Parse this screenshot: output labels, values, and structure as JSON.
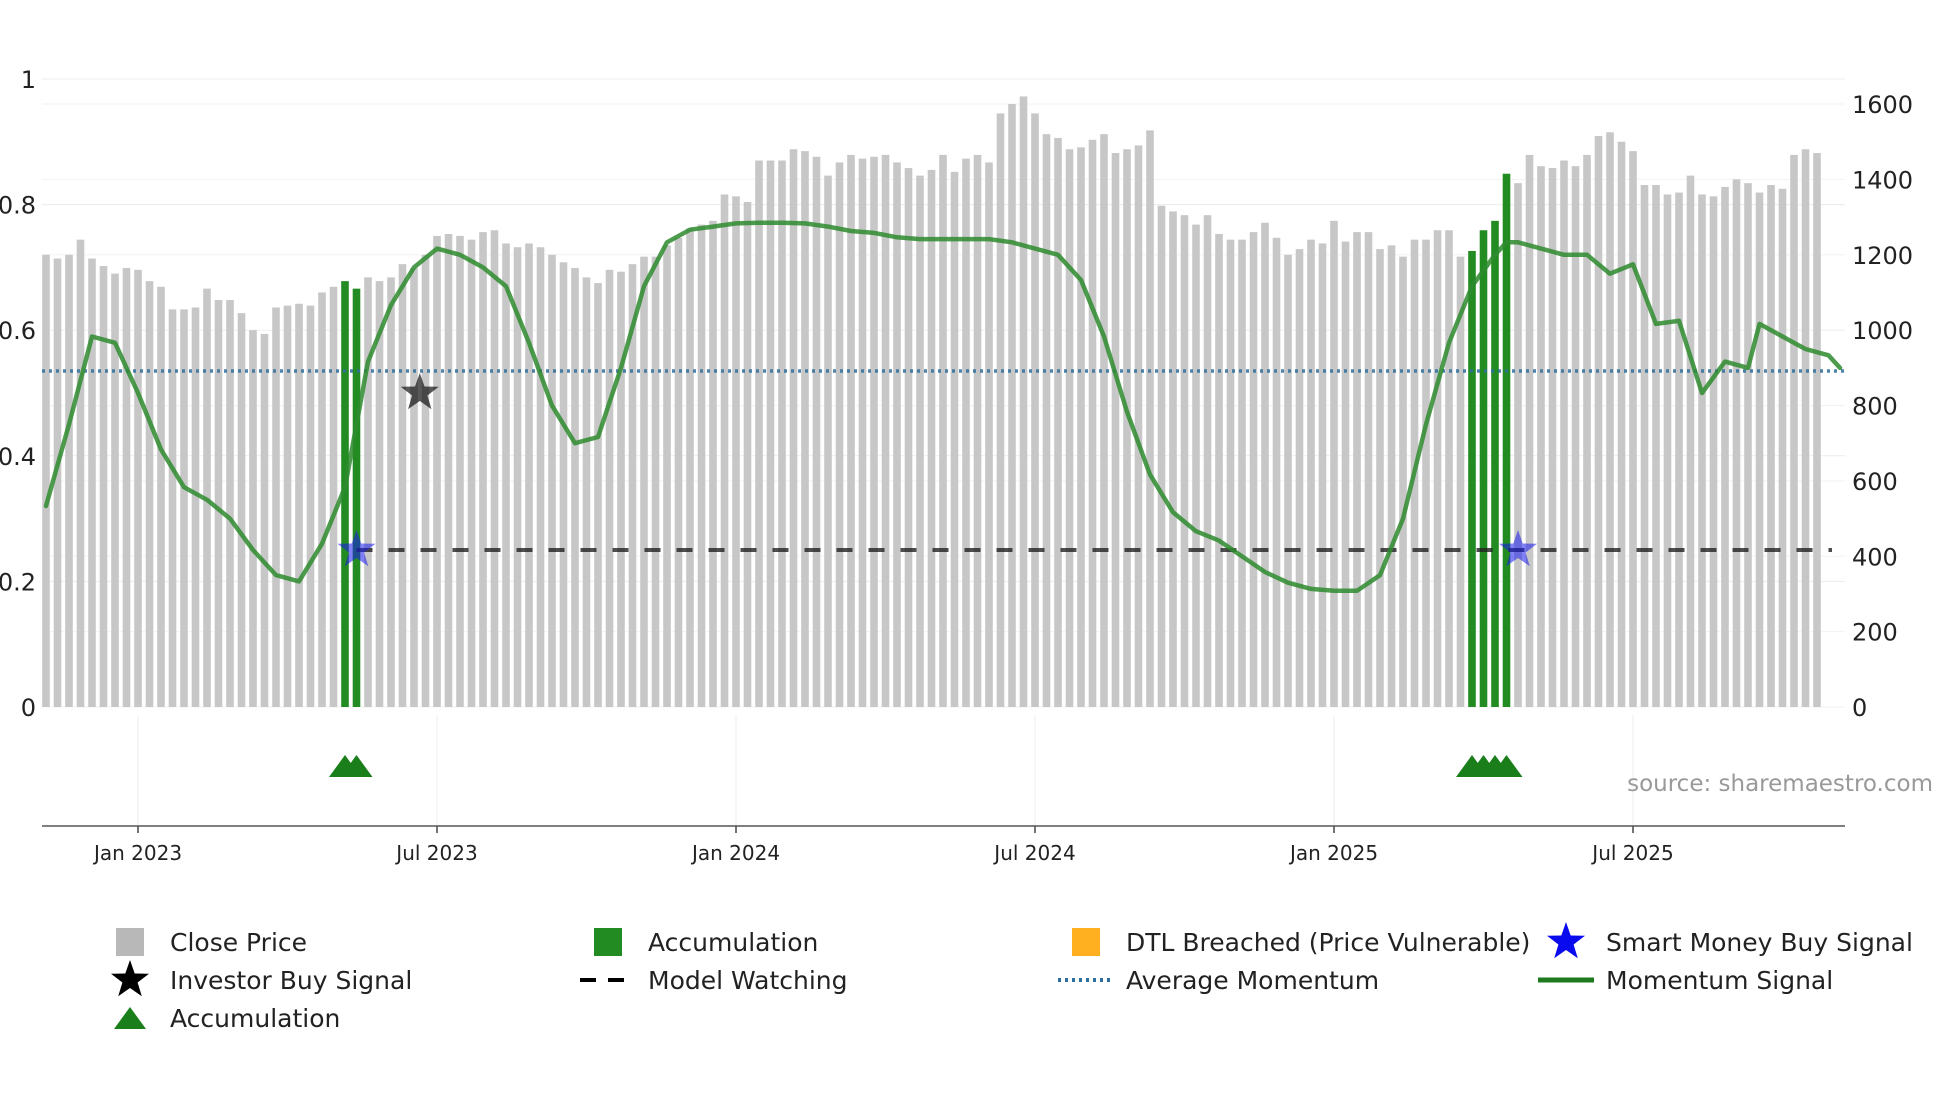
{
  "chart_data": {
    "type": "bar",
    "title": "",
    "source": "source: sharemaestro.com",
    "left_axis": {
      "range": [
        0,
        1
      ],
      "ticks": [
        "0",
        "0.2",
        "0.4",
        "0.6",
        "0.8",
        "1"
      ],
      "tick_values": [
        0,
        0.2,
        0.4,
        0.6,
        0.8,
        1.0
      ]
    },
    "right_axis": {
      "range": [
        0,
        1600
      ],
      "ticks": [
        "0",
        "200",
        "400",
        "600",
        "800",
        "1000",
        "1200",
        "1400",
        "1600"
      ],
      "tick_values": [
        0,
        200,
        400,
        600,
        800,
        1000,
        1200,
        1400,
        1600
      ]
    },
    "x_axis": {
      "ticks": [
        "Jan 2023",
        "Jul 2023",
        "Jan 2024",
        "Jul 2024",
        "Jan 2025",
        "Jul 2025"
      ],
      "tick_positions_weeks": [
        8,
        34,
        60,
        86,
        112,
        138
      ]
    },
    "close_price_weekly": [
      1200,
      1190,
      1200,
      1240,
      1190,
      1170,
      1150,
      1165,
      1160,
      1130,
      1115,
      1055,
      1055,
      1060,
      1110,
      1080,
      1080,
      1045,
      1000,
      990,
      1060,
      1065,
      1070,
      1065,
      1100,
      1115,
      1130,
      1110,
      1140,
      1130,
      1140,
      1175,
      1165,
      1200,
      1250,
      1255,
      1250,
      1240,
      1260,
      1265,
      1230,
      1220,
      1230,
      1220,
      1200,
      1180,
      1165,
      1140,
      1125,
      1160,
      1155,
      1175,
      1195,
      1195,
      1225,
      1245,
      1270,
      1280,
      1290,
      1360,
      1355,
      1340,
      1450,
      1450,
      1450,
      1480,
      1475,
      1460,
      1410,
      1445,
      1465,
      1455,
      1460,
      1465,
      1445,
      1430,
      1410,
      1425,
      1465,
      1420,
      1455,
      1465,
      1445,
      1575,
      1600,
      1620,
      1575,
      1520,
      1510,
      1480,
      1485,
      1505,
      1520,
      1470,
      1480,
      1490,
      1530,
      1330,
      1315,
      1305,
      1280,
      1305,
      1255,
      1240,
      1240,
      1260,
      1285,
      1245,
      1200,
      1215,
      1240,
      1230,
      1290,
      1235,
      1260,
      1260,
      1215,
      1225,
      1195,
      1240,
      1240,
      1265,
      1265,
      1195,
      1210,
      1265,
      1290,
      1415,
      1390,
      1465,
      1435,
      1430,
      1450,
      1435,
      1465,
      1515,
      1525,
      1500,
      1475,
      1385,
      1385,
      1360,
      1365,
      1410,
      1360,
      1355,
      1380,
      1400,
      1390,
      1365,
      1385,
      1375,
      1465,
      1480,
      1470
    ],
    "series": [
      {
        "name": "Close Price",
        "type": "bar",
        "axis": "right",
        "color": "#c7c7c7"
      },
      {
        "name": "Accumulation",
        "type": "bar",
        "axis": "right",
        "color": "#228b22",
        "weeks": [
          26,
          27,
          124,
          125,
          126,
          127
        ]
      },
      {
        "name": "DTL Breached (Price Vulnerable)",
        "type": "bar",
        "axis": "right",
        "color": "#ffb020",
        "weeks": []
      },
      {
        "name": "Smart Money Buy Signal",
        "type": "marker",
        "axis": "left",
        "color": "#1a1aee",
        "points": [
          {
            "week": 27,
            "value": 0.25
          },
          {
            "week": 128,
            "value": 0.25
          }
        ]
      },
      {
        "name": "Investor Buy Signal",
        "type": "marker",
        "axis": "left",
        "color": "#111111",
        "points": [
          {
            "week": 32.5,
            "value": 0.5
          }
        ]
      },
      {
        "name": "Model Watching",
        "type": "line",
        "axis": "left",
        "color": "#222222",
        "value": 0.25,
        "from_week": 27
      },
      {
        "name": "Average Momentum",
        "type": "line",
        "axis": "left",
        "color": "#2f6f9f",
        "value": 0.535
      },
      {
        "name": "Momentum Signal",
        "type": "line",
        "axis": "left",
        "color": "#2e8b2e",
        "x": [
          0,
          2,
          4,
          6,
          8,
          10,
          12,
          14,
          16,
          18,
          20,
          22,
          24,
          26,
          27,
          28,
          30,
          32,
          34,
          36,
          38,
          40,
          42,
          44,
          46,
          48,
          50,
          52,
          54,
          56,
          58,
          60,
          62,
          64,
          66,
          68,
          70,
          72,
          74,
          76,
          78,
          80,
          82,
          84,
          86,
          88,
          90,
          92,
          94,
          96,
          98,
          100,
          102,
          104,
          106,
          108,
          110,
          112,
          114,
          116,
          118,
          120,
          122,
          124,
          126,
          127,
          128,
          130,
          132,
          134,
          136,
          138,
          140,
          142,
          144,
          146,
          148,
          149,
          150,
          151,
          152,
          153,
          154,
          155,
          156
        ],
        "values": [
          0.32,
          0.45,
          0.59,
          0.58,
          0.5,
          0.41,
          0.35,
          0.33,
          0.3,
          0.25,
          0.21,
          0.2,
          0.26,
          0.35,
          0.45,
          0.55,
          0.64,
          0.7,
          0.73,
          0.72,
          0.7,
          0.67,
          0.58,
          0.48,
          0.42,
          0.43,
          0.54,
          0.67,
          0.74,
          0.76,
          0.765,
          0.77,
          0.771,
          0.771,
          0.77,
          0.765,
          0.758,
          0.755,
          0.748,
          0.745,
          0.745,
          0.745,
          0.745,
          0.74,
          0.73,
          0.72,
          0.68,
          0.59,
          0.47,
          0.37,
          0.31,
          0.28,
          0.265,
          0.24,
          0.215,
          0.198,
          0.188,
          0.185,
          0.185,
          0.21,
          0.3,
          0.45,
          0.58,
          0.67,
          0.72,
          0.74,
          0.74,
          0.73,
          0.72,
          0.72,
          0.69,
          0.705,
          0.61,
          0.615,
          0.5,
          0.55,
          0.54,
          0.61,
          0.6,
          0.59,
          0.58,
          0.57,
          0.565,
          0.56,
          0.54
        ]
      },
      {
        "name": "Accumulation",
        "type": "triangle-marker",
        "color": "#1a7f1a",
        "weeks": [
          26,
          27,
          124,
          125,
          126,
          127
        ]
      }
    ],
    "legend": [
      {
        "label": "Close Price",
        "symbol": "square",
        "color": "#b8b8b8"
      },
      {
        "label": "Accumulation",
        "symbol": "square",
        "color": "#228b22"
      },
      {
        "label": "DTL Breached (Price Vulnerable)",
        "symbol": "square",
        "color": "#ffb020"
      },
      {
        "label": "Smart Money Buy Signal",
        "symbol": "star",
        "color": "#0a0aee"
      },
      {
        "label": "Investor Buy Signal",
        "symbol": "star",
        "color": "#000000"
      },
      {
        "label": "Model Watching",
        "symbol": "dash",
        "color": "#000000"
      },
      {
        "label": "Average Momentum",
        "symbol": "dot",
        "color": "#2f6f9f"
      },
      {
        "label": "Momentum Signal",
        "symbol": "line",
        "color": "#1f7a1f"
      },
      {
        "label": "Accumulation",
        "symbol": "triangle",
        "color": "#1a7f1a"
      }
    ]
  }
}
